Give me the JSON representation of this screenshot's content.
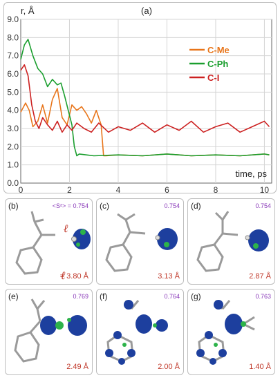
{
  "panel_label": "(a)",
  "colors": {
    "C-Me": "#e8751a",
    "C-Ph": "#1a9e2e",
    "C-I": "#cc2020"
  },
  "chart_data": {
    "type": "line",
    "title": "",
    "xlabel": "time, ps",
    "ylabel": "r, Å",
    "xlim": [
      0,
      10.3
    ],
    "ylim": [
      0,
      9.0
    ],
    "xticks": [
      "0",
      "2",
      "4",
      "6",
      "8",
      "10"
    ],
    "yticks": [
      "0.0",
      "1.0",
      "2.0",
      "3.0",
      "4.0",
      "5.0",
      "6.0",
      "7.0",
      "8.0",
      "9.0"
    ],
    "grid": true,
    "legend": "top-right",
    "series": [
      {
        "name": "C-Me",
        "x": [
          0,
          0.2,
          0.35,
          0.5,
          0.7,
          0.9,
          1.1,
          1.3,
          1.5,
          1.7,
          1.9,
          2.1,
          2.3,
          2.5,
          2.7,
          2.9,
          3.1,
          3.3,
          3.4,
          3.5,
          4.0,
          5.0,
          6.0,
          7.0,
          8.0,
          9.0,
          10.0,
          10.2
        ],
        "y": [
          3.9,
          4.4,
          4.0,
          3.1,
          3.4,
          4.3,
          3.3,
          4.6,
          5.2,
          3.6,
          3.2,
          4.3,
          4.0,
          4.2,
          3.8,
          3.3,
          4.0,
          3.2,
          1.5,
          1.5,
          1.55,
          1.5,
          1.6,
          1.5,
          1.55,
          1.5,
          1.6,
          1.55
        ]
      },
      {
        "name": "C-Ph",
        "x": [
          0,
          0.15,
          0.3,
          0.5,
          0.7,
          0.9,
          1.1,
          1.3,
          1.5,
          1.65,
          1.8,
          1.95,
          2.1,
          2.2,
          2.3,
          2.4,
          3.0,
          4.0,
          5.0,
          6.0,
          7.0,
          8.0,
          9.0,
          10.0,
          10.2
        ],
        "y": [
          6.8,
          7.6,
          7.9,
          7.0,
          6.3,
          6.0,
          5.3,
          5.7,
          5.4,
          5.5,
          4.8,
          4.0,
          3.2,
          2.0,
          1.5,
          1.6,
          1.5,
          1.55,
          1.5,
          1.6,
          1.5,
          1.55,
          1.5,
          1.6,
          1.55
        ]
      },
      {
        "name": "C-I",
        "x": [
          0,
          0.15,
          0.3,
          0.45,
          0.6,
          0.75,
          0.9,
          1.1,
          1.3,
          1.5,
          1.7,
          1.9,
          2.1,
          2.3,
          2.6,
          2.9,
          3.2,
          3.6,
          4.0,
          4.5,
          5.0,
          5.5,
          6.0,
          6.5,
          7.0,
          7.5,
          8.0,
          8.5,
          9.0,
          9.5,
          10.0,
          10.2
        ],
        "y": [
          6.2,
          6.5,
          5.9,
          4.3,
          3.4,
          3.0,
          3.6,
          3.2,
          2.9,
          3.4,
          2.8,
          3.2,
          2.9,
          3.3,
          3.0,
          2.8,
          3.3,
          2.8,
          3.1,
          2.9,
          3.3,
          2.8,
          3.2,
          2.9,
          3.4,
          2.8,
          3.1,
          3.3,
          2.8,
          3.1,
          3.4,
          3.1
        ]
      }
    ]
  },
  "panels": [
    {
      "label": "(b)",
      "s2": "<S²> = 0.754",
      "dist": "= 3.80 Å"
    },
    {
      "label": "(c)",
      "s2": "0.754",
      "dist": "3.13 Å"
    },
    {
      "label": "(d)",
      "s2": "0.754",
      "dist": "2.87 Å"
    },
    {
      "label": "(e)",
      "s2": "0.769",
      "dist": "2.49 Å"
    },
    {
      "label": "(f)",
      "s2": "0.764",
      "dist": "2.00 Å"
    },
    {
      "label": "(g)",
      "s2": "0.763",
      "dist": "1.40 Å"
    }
  ],
  "ell_symbol": "ℓ"
}
